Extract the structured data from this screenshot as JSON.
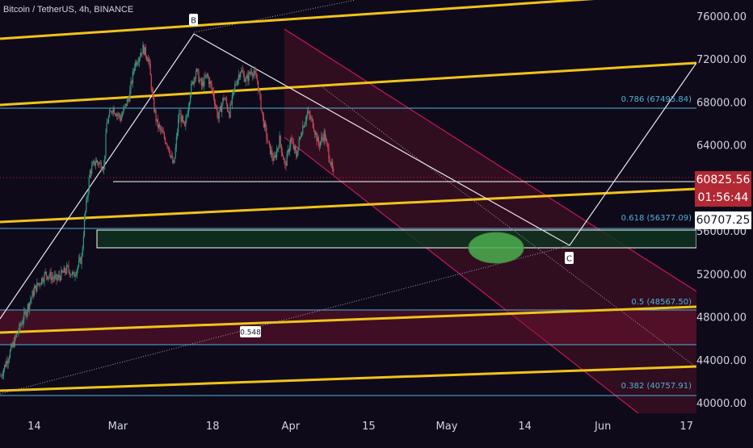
{
  "header": {
    "symbol": "Bitcoin / TetherUS, 4h, BINANCE"
  },
  "colors": {
    "background": "#0f0a1a",
    "trend_line": "#f0c419",
    "fib_line": "#4fb3d9",
    "channel_fill": "#7a1530",
    "channel_border": "#c2185b",
    "zone_fill": "#0e3320",
    "ellipse_fill": "#4caf50",
    "candle_up": "#2e9c7f",
    "candle_down": "#d04757",
    "price_badge": "#b22833"
  },
  "chart_data": {
    "type": "candlestick",
    "title": "",
    "ylim": [
      39500,
      77500
    ],
    "y_ticks": [
      "76000.00",
      "72000.00",
      "68000.00",
      "64000.00",
      "60000.00",
      "56000.00",
      "52000.00",
      "48000.00",
      "44000.00",
      "40000.00"
    ],
    "x_ticks": [
      "14",
      "Mar",
      "18",
      "Apr",
      "15",
      "May",
      "14",
      "Jun",
      "17"
    ],
    "price_path": [
      {
        "d": 0,
        "p": 42500
      },
      {
        "d": 3,
        "p": 46500
      },
      {
        "d": 6,
        "p": 50500
      },
      {
        "d": 8,
        "p": 52000
      },
      {
        "d": 10,
        "p": 51500
      },
      {
        "d": 12,
        "p": 52500
      },
      {
        "d": 13,
        "p": 51800
      },
      {
        "d": 14.5,
        "p": 53500
      },
      {
        "d": 15,
        "p": 57000
      },
      {
        "d": 16,
        "p": 61500
      },
      {
        "d": 17,
        "p": 62500
      },
      {
        "d": 18.5,
        "p": 62000
      },
      {
        "d": 19,
        "p": 66000
      },
      {
        "d": 20,
        "p": 67500
      },
      {
        "d": 21.5,
        "p": 66500
      },
      {
        "d": 23,
        "p": 68500
      },
      {
        "d": 24,
        "p": 71500
      },
      {
        "d": 25.5,
        "p": 73000
      },
      {
        "d": 26.5,
        "p": 72000
      },
      {
        "d": 27.3,
        "p": 68000
      },
      {
        "d": 28,
        "p": 66000
      },
      {
        "d": 30,
        "p": 64000
      },
      {
        "d": 31,
        "p": 62000
      },
      {
        "d": 32,
        "p": 67000
      },
      {
        "d": 33,
        "p": 65500
      },
      {
        "d": 34,
        "p": 69000
      },
      {
        "d": 35,
        "p": 71000
      },
      {
        "d": 36,
        "p": 69500
      },
      {
        "d": 37,
        "p": 70500
      },
      {
        "d": 38,
        "p": 69000
      },
      {
        "d": 39,
        "p": 66500
      },
      {
        "d": 40,
        "p": 68500
      },
      {
        "d": 41,
        "p": 67000
      },
      {
        "d": 42,
        "p": 69500
      },
      {
        "d": 43,
        "p": 71000
      },
      {
        "d": 44,
        "p": 70000
      },
      {
        "d": 45,
        "p": 71000
      },
      {
        "d": 46,
        "p": 70000
      },
      {
        "d": 47,
        "p": 66500
      },
      {
        "d": 48,
        "p": 64000
      },
      {
        "d": 49,
        "p": 62500
      },
      {
        "d": 50,
        "p": 64500
      },
      {
        "d": 51,
        "p": 62000
      },
      {
        "d": 52,
        "p": 64500
      },
      {
        "d": 53,
        "p": 63000
      },
      {
        "d": 54,
        "p": 65500
      },
      {
        "d": 55,
        "p": 67000
      },
      {
        "d": 56,
        "p": 66000
      },
      {
        "d": 57,
        "p": 64000
      },
      {
        "d": 58,
        "p": 65000
      },
      {
        "d": 59,
        "p": 62800
      },
      {
        "d": 59.8,
        "p": 60800
      }
    ],
    "current_price": "60825.56",
    "countdown": "01:56:44",
    "marked_price": "60707.25",
    "fib_levels": [
      {
        "ratio": "0.786",
        "value": "67495.84",
        "label": "0.786 (67495.84)"
      },
      {
        "ratio": "0.618",
        "value": "56377.09",
        "label": "0.618 (56377.09)"
      },
      {
        "ratio": "0.5",
        "value": "48567.50",
        "label": "0.5 (48567.50)"
      },
      {
        "ratio": "0.382",
        "value": "40757.91",
        "label": "0.382 (40757.91)"
      }
    ],
    "points": [
      {
        "name": "B",
        "d": 26.2,
        "p": 74500
      },
      {
        "name": "C",
        "d": 96.5,
        "p": 55200
      }
    ],
    "ratio_marker": "0.548"
  }
}
